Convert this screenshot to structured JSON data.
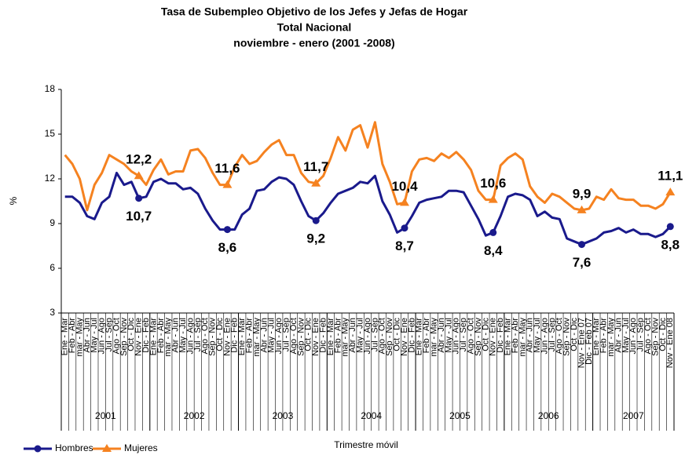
{
  "chart_data": {
    "type": "line",
    "title": "Tasa de Subempleo Objetivo de los Jefes  y Jefas de Hogar",
    "subtitle": [
      "Total Nacional",
      "noviembre  - enero (2001 -2008)"
    ],
    "y_label": "%",
    "x_label": "Trimestre móvil",
    "years": [
      "2001",
      "2002",
      "2003",
      "2004",
      "2005",
      "2006",
      "2007"
    ],
    "categories": [
      "Ene - Mar",
      "Feb - Abr",
      "mar - May",
      "Abr - Jun",
      "May - Jul",
      "Jun - Ago",
      "Jul - Sep",
      "Ago - Oct",
      "Sep - Nov",
      "Oct - Dic",
      "Nov - Ene",
      "Dic - Feb",
      "Ene - Mar",
      "Feb - Abr",
      "mar - May",
      "Abr - Jun",
      "May - Jul",
      "Jun - Ago",
      "Jul - Sep",
      "Ago - Oct",
      "Sep - Nov",
      "Oct - Dic",
      "Nov - Ene",
      "Dic - Feb",
      "Ene - Mar",
      "Feb - Abr",
      "mar - May",
      "Abr - Jun",
      "May - Jul",
      "Jun - Ago",
      "Jul - Sep",
      "Ago - Oct",
      "Sep - Nov",
      "Oct - Dic",
      "Nov - Ene",
      "Dic - Feb",
      "Ene - Mar",
      "Feb - Abr",
      "mar - May",
      "Abr - Jun",
      "May - Jul",
      "Jun - Ago",
      "Jul - Sep",
      "Ago - Oct",
      "Sep - Nov",
      "Oct - Dic",
      "Nov - Ene",
      "Dic - Feb",
      "Ene - Mar",
      "Feb - Abr",
      "mar - May",
      "Abr - Jun",
      "May - Jul",
      "Jun - Ago",
      "Jul - Sep",
      "Ago - Oct",
      "Sep - Nov",
      "Oct - Dic",
      "Nov - Ene",
      "Dic - Feb",
      "Ene - Mar",
      "Feb - Abr",
      "mar - May",
      "Abr - Jun",
      "May - Jul",
      "Jun - Ago",
      "Jul - Sep",
      "Ago - Oct",
      "Sep - Nov",
      "Oct - Dic",
      "Nov - Ene 07",
      "Dic - Feb 07",
      "Ene - Mar",
      "Feb - Abr",
      "mar - May",
      "Abr - Jun",
      "May - Jul",
      "Jun - Ago",
      "Jul - Sep",
      "Ago - Oct",
      "Sep - Nov",
      "Oct - Dic",
      "Nov - Ene 08"
    ],
    "series": [
      {
        "name": "Hombres",
        "color": "#1a1a8c",
        "marker": "circle",
        "values": [
          10.8,
          10.8,
          10.4,
          9.5,
          9.3,
          10.4,
          10.8,
          12.4,
          11.6,
          11.8,
          10.7,
          10.8,
          11.8,
          12.0,
          11.7,
          11.7,
          11.3,
          11.4,
          11.0,
          10.0,
          9.2,
          8.6,
          8.6,
          8.6,
          9.6,
          10.0,
          11.2,
          11.3,
          11.8,
          12.1,
          12.0,
          11.6,
          10.5,
          9.5,
          9.2,
          9.7,
          10.4,
          11.0,
          11.2,
          11.4,
          11.8,
          11.7,
          12.2,
          10.5,
          9.6,
          8.4,
          8.7,
          9.5,
          10.4,
          10.6,
          10.7,
          10.8,
          11.2,
          11.2,
          11.1,
          10.2,
          9.3,
          8.2,
          8.4,
          9.5,
          10.8,
          11.0,
          10.9,
          10.6,
          9.5,
          9.8,
          9.4,
          9.3,
          8.0,
          7.8,
          7.6,
          7.8,
          8.0,
          8.4,
          8.5,
          8.7,
          8.4,
          8.6,
          8.3,
          8.3,
          8.1,
          8.3,
          8.8
        ],
        "value_labels": [
          null,
          null,
          null,
          null,
          null,
          null,
          null,
          null,
          null,
          null,
          "10,7",
          null,
          null,
          null,
          null,
          null,
          null,
          null,
          null,
          null,
          null,
          null,
          "8,6",
          null,
          null,
          null,
          null,
          null,
          null,
          null,
          null,
          null,
          null,
          null,
          "9,2",
          null,
          null,
          null,
          null,
          null,
          null,
          null,
          null,
          null,
          null,
          null,
          "8,7",
          null,
          null,
          null,
          null,
          null,
          null,
          null,
          null,
          null,
          null,
          null,
          "8,4",
          null,
          null,
          null,
          null,
          null,
          null,
          null,
          null,
          null,
          null,
          null,
          "7,6",
          null,
          null,
          null,
          null,
          null,
          null,
          null,
          null,
          null,
          null,
          null,
          "8,8"
        ]
      },
      {
        "name": "Mujeres",
        "color": "#f58220",
        "marker": "triangle",
        "values": [
          13.6,
          13.0,
          12.0,
          9.9,
          11.6,
          12.4,
          13.6,
          13.3,
          13.0,
          12.5,
          12.2,
          11.6,
          12.6,
          13.3,
          12.3,
          12.5,
          12.5,
          13.9,
          14.0,
          13.4,
          12.4,
          11.6,
          11.6,
          12.8,
          13.6,
          13.0,
          13.2,
          13.8,
          14.3,
          14.6,
          13.6,
          13.6,
          12.4,
          11.8,
          11.7,
          12.2,
          13.4,
          14.8,
          13.9,
          15.3,
          15.6,
          14.1,
          15.8,
          13.0,
          11.8,
          10.3,
          10.4,
          12.5,
          13.3,
          13.4,
          13.2,
          13.7,
          13.4,
          13.8,
          13.3,
          12.6,
          11.2,
          10.6,
          10.6,
          12.9,
          13.4,
          13.7,
          13.3,
          11.5,
          10.8,
          10.4,
          11.0,
          10.8,
          10.4,
          10.0,
          9.9,
          10.0,
          10.8,
          10.6,
          11.3,
          10.7,
          10.6,
          10.6,
          10.2,
          10.2,
          10.0,
          10.3,
          11.1
        ],
        "value_labels": [
          null,
          null,
          null,
          null,
          null,
          null,
          null,
          null,
          null,
          null,
          "12,2",
          null,
          null,
          null,
          null,
          null,
          null,
          null,
          null,
          null,
          null,
          null,
          "11,6",
          null,
          null,
          null,
          null,
          null,
          null,
          null,
          null,
          null,
          null,
          null,
          "11,7",
          null,
          null,
          null,
          null,
          null,
          null,
          null,
          null,
          null,
          null,
          null,
          "10,4",
          null,
          null,
          null,
          null,
          null,
          null,
          null,
          null,
          null,
          null,
          null,
          "10,6",
          null,
          null,
          null,
          null,
          null,
          null,
          null,
          null,
          null,
          null,
          null,
          "9,9",
          null,
          null,
          null,
          null,
          null,
          null,
          null,
          null,
          null,
          null,
          null,
          "11,1"
        ]
      }
    ],
    "ylim": [
      3,
      18
    ],
    "yticks": [
      3,
      6,
      9,
      12,
      15,
      18
    ],
    "grid": false,
    "legend": "bottom-left"
  }
}
